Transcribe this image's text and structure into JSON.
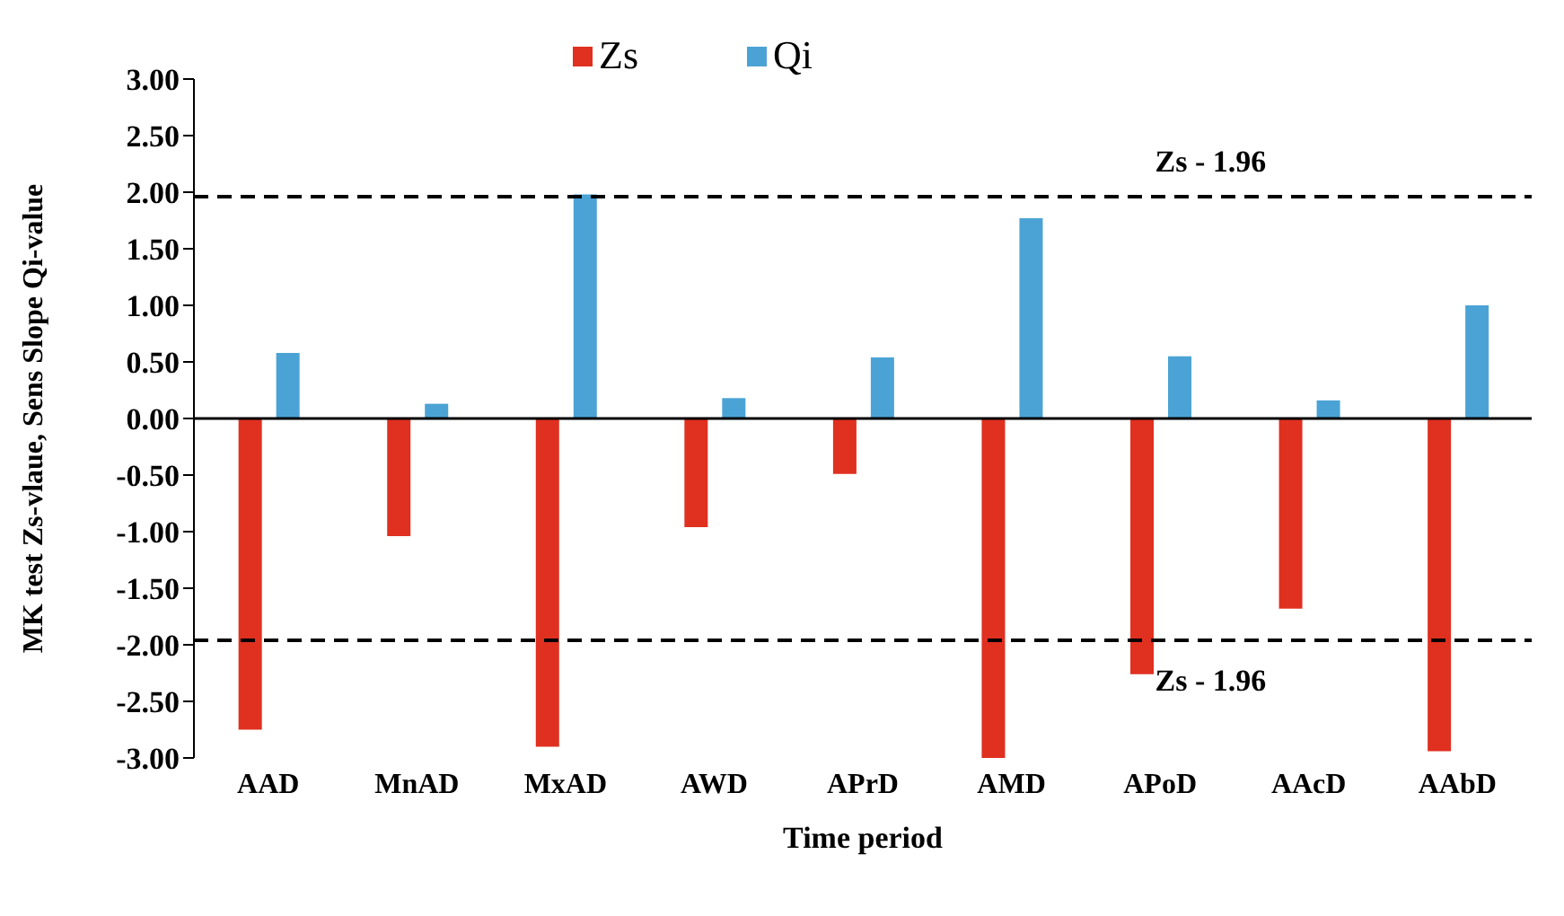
{
  "chart_data": {
    "type": "bar",
    "xlabel": "Time period",
    "ylabel": "MK test  Zs-vlaue, Sens Slope Qi-value",
    "categories": [
      "AAD",
      "MnAD",
      "MxAD",
      "AWD",
      "APrD",
      "AMD",
      "APoD",
      "AAcD",
      "AAbD"
    ],
    "series": [
      {
        "name": "Zs",
        "color": "#e03020",
        "values": [
          -2.75,
          -1.04,
          -2.9,
          -0.96,
          -0.49,
          -3.0,
          -2.26,
          -1.68,
          -2.94
        ]
      },
      {
        "name": "Qi",
        "color": "#4ba3d5",
        "values": [
          0.58,
          0.13,
          1.98,
          0.18,
          0.54,
          1.77,
          0.55,
          0.16,
          1.0
        ]
      }
    ],
    "ylim": [
      -3,
      3
    ],
    "yticks": [
      {
        "value": -3,
        "label": "-3.00"
      },
      {
        "value": -2.5,
        "label": "-2.50"
      },
      {
        "value": -2,
        "label": "-2.00"
      },
      {
        "value": -1.5,
        "label": "-1.50"
      },
      {
        "value": -1,
        "label": "-1.00"
      },
      {
        "value": -0.5,
        "label": "-0.50"
      },
      {
        "value": 0,
        "label": "0.00"
      },
      {
        "value": 0.5,
        "label": "0.50"
      },
      {
        "value": 1,
        "label": "1.00"
      },
      {
        "value": 1.5,
        "label": "1.50"
      },
      {
        "value": 2,
        "label": "2.00"
      },
      {
        "value": 2.5,
        "label": "2.50"
      },
      {
        "value": 3,
        "label": "3.00"
      }
    ],
    "ref_lines": [
      {
        "axis": "y",
        "value": 1.96,
        "label": "Zs  - 1.96",
        "line_style": "dashed",
        "color": "#000000"
      },
      {
        "axis": "y",
        "value": -1.96,
        "label": "Zs  - 1.96",
        "line_style": "dashed",
        "color": "#000000"
      }
    ],
    "legend": "top"
  }
}
